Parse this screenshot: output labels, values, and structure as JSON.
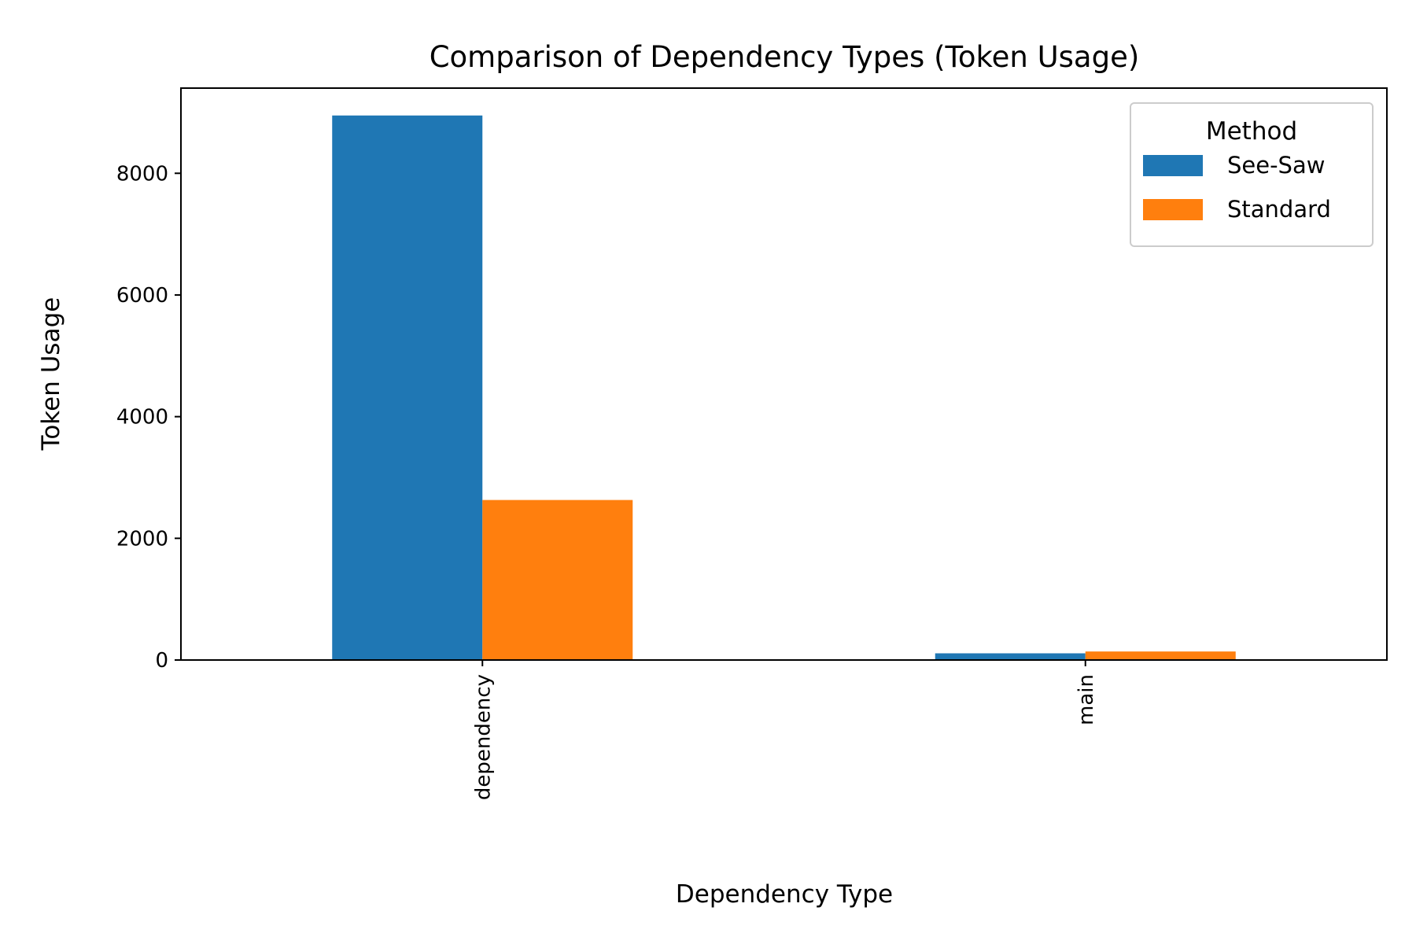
{
  "chart_data": {
    "type": "bar",
    "title": "Comparison of Dependency Types (Token Usage)",
    "xlabel": "Dependency Type",
    "ylabel": "Token Usage",
    "categories": [
      "dependency",
      "main"
    ],
    "series": [
      {
        "name": "See-Saw",
        "values": [
          8950,
          110
        ],
        "color": "#1f77b4"
      },
      {
        "name": "Standard",
        "values": [
          2630,
          140
        ],
        "color": "#ff7f0e"
      }
    ],
    "ylim": [
      0,
      9400
    ],
    "yticks": [
      0,
      2000,
      4000,
      6000,
      8000
    ],
    "legend": {
      "title": "Method",
      "placement": "top-right"
    },
    "grid": false
  }
}
